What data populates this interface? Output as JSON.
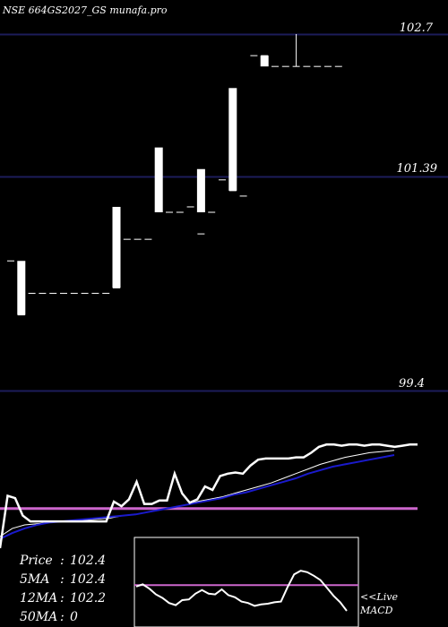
{
  "header": {
    "title": "NSE 664GS2027_GS munafa.pro"
  },
  "stats": {
    "price_label": "Price",
    "price_value": "102.4",
    "ma5_label": "5MA",
    "ma5_value": "102.4",
    "ma12_label": "12MA",
    "ma12_value": "102.2",
    "ma50_label": "50MA",
    "ma50_value": "0"
  },
  "macd_label": {
    "line1": "<<Live",
    "line2": "MACD"
  },
  "colors": {
    "background": "#000000",
    "grid": "#1c1c5a",
    "candle": "#ffffff",
    "ma_slow": "#1a1acc",
    "ma_fast": "#ffffff",
    "signal": "#cc66cc",
    "panel_border": "#ffffff"
  },
  "chart_data": [
    {
      "type": "candlestick",
      "title": "NSE 664GS2027_GS munafa.pro",
      "ylim": [
        99.4,
        102.7
      ],
      "y_ticks": [
        "102.7",
        "101.39",
        "99.4"
      ],
      "candles": [
        {
          "o": 100.6,
          "h": 100.6,
          "l": 100.6,
          "c": 100.6
        },
        {
          "o": 100.1,
          "h": 100.1,
          "l": 100.1,
          "c": 100.1
        },
        {
          "o": 100.3,
          "h": 100.3,
          "l": 100.3,
          "c": 100.3
        },
        {
          "o": 100.3,
          "h": 100.3,
          "l": 100.3,
          "c": 100.3
        },
        {
          "o": 100.3,
          "h": 100.3,
          "l": 100.3,
          "c": 100.3
        },
        {
          "o": 100.3,
          "h": 100.3,
          "l": 100.3,
          "c": 100.3
        },
        {
          "o": 100.3,
          "h": 100.3,
          "l": 100.3,
          "c": 100.3
        },
        {
          "o": 100.3,
          "h": 100.3,
          "l": 100.3,
          "c": 100.3
        },
        {
          "o": 100.3,
          "h": 100.3,
          "l": 100.3,
          "c": 100.3
        },
        {
          "o": 100.3,
          "h": 100.3,
          "l": 100.3,
          "c": 100.3
        },
        {
          "o": 100.35,
          "h": 100.35,
          "l": 100.35,
          "c": 100.35
        },
        {
          "o": 100.8,
          "h": 100.8,
          "l": 100.8,
          "c": 100.8
        },
        {
          "o": 100.8,
          "h": 100.8,
          "l": 100.8,
          "c": 100.8
        },
        {
          "o": 100.8,
          "h": 100.8,
          "l": 100.8,
          "c": 100.8
        },
        {
          "o": 101.25,
          "h": 101.25,
          "l": 101.25,
          "c": 101.25
        },
        {
          "o": 101.05,
          "h": 101.05,
          "l": 101.05,
          "c": 101.05
        },
        {
          "o": 101.05,
          "h": 101.05,
          "l": 101.05,
          "c": 101.05
        },
        {
          "o": 101.1,
          "h": 101.1,
          "l": 101.1,
          "c": 101.1
        },
        {
          "o": 100.85,
          "h": 100.85,
          "l": 100.85,
          "c": 100.85
        },
        {
          "o": 101.05,
          "h": 101.05,
          "l": 101.05,
          "c": 101.05
        },
        {
          "o": 101.35,
          "h": 101.35,
          "l": 101.35,
          "c": 101.35
        },
        {
          "o": 101.25,
          "h": 101.25,
          "l": 101.25,
          "c": 101.25
        },
        {
          "o": 101.2,
          "h": 101.2,
          "l": 101.2,
          "c": 101.2
        },
        {
          "o": 102.5,
          "h": 102.5,
          "l": 102.5,
          "c": 102.5
        },
        {
          "o": 102.5,
          "h": 102.5,
          "l": 102.5,
          "c": 102.5
        },
        {
          "o": 102.4,
          "h": 102.4,
          "l": 102.4,
          "c": 102.4
        },
        {
          "o": 102.4,
          "h": 102.4,
          "l": 102.4,
          "c": 102.4
        },
        {
          "o": 102.4,
          "h": 102.7,
          "l": 102.4,
          "c": 102.4
        },
        {
          "o": 102.4,
          "h": 102.4,
          "l": 102.4,
          "c": 102.4
        },
        {
          "o": 102.4,
          "h": 102.4,
          "l": 102.4,
          "c": 102.4
        },
        {
          "o": 102.4,
          "h": 102.4,
          "l": 102.4,
          "c": 102.4
        },
        {
          "o": 102.4,
          "h": 102.4,
          "l": 102.4,
          "c": 102.4
        }
      ],
      "bodies": [
        {
          "index": 1,
          "o": 100.6,
          "c": 100.1
        },
        {
          "index": 10,
          "o": 100.35,
          "c": 101.1
        },
        {
          "index": 14,
          "o": 101.05,
          "c": 101.65
        },
        {
          "index": 18,
          "o": 101.05,
          "c": 101.45
        },
        {
          "index": 21,
          "o": 101.25,
          "c": 102.2
        },
        {
          "index": 24,
          "o": 102.4,
          "c": 102.5
        }
      ]
    },
    {
      "type": "line",
      "panel": "moving-averages",
      "series": [
        {
          "role": "price",
          "values": [
            0.1,
            0.55,
            0.53,
            0.38,
            0.33,
            0.33,
            0.33,
            0.33,
            0.33,
            0.33,
            0.33,
            0.33,
            0.33,
            0.33,
            0.33,
            0.5,
            0.46,
            0.52,
            0.67,
            0.48,
            0.48,
            0.51,
            0.51,
            0.74,
            0.57,
            0.49,
            0.52,
            0.63,
            0.6,
            0.72,
            0.74,
            0.75,
            0.74,
            0.81,
            0.86,
            0.87,
            0.87,
            0.87,
            0.87,
            0.88,
            0.88,
            0.92,
            0.97,
            0.99,
            0.99,
            0.98,
            0.99,
            0.99,
            0.98,
            0.99,
            0.99,
            0.98,
            0.97,
            0.98,
            0.99,
            0.99
          ]
        },
        {
          "role": "fast-average",
          "values": [
            0.2,
            0.27,
            0.3,
            0.31,
            0.32,
            0.33,
            0.33,
            0.34,
            0.35,
            0.36,
            0.38,
            0.39,
            0.41,
            0.43,
            0.45,
            0.47,
            0.5,
            0.52,
            0.54,
            0.57,
            0.6,
            0.63,
            0.66,
            0.7,
            0.74,
            0.78,
            0.82,
            0.85,
            0.88,
            0.9,
            0.92,
            0.93,
            0.94
          ]
        },
        {
          "role": "slow-average",
          "values": [
            0.18,
            0.23,
            0.27,
            0.3,
            0.32,
            0.33,
            0.34,
            0.35,
            0.36,
            0.37,
            0.38,
            0.39,
            0.41,
            0.43,
            0.45,
            0.47,
            0.49,
            0.51,
            0.53,
            0.56,
            0.58,
            0.61,
            0.64,
            0.67,
            0.7,
            0.74,
            0.77,
            0.8,
            0.82,
            0.84,
            0.86,
            0.88,
            0.9
          ]
        }
      ],
      "signal_level": 0.44
    },
    {
      "type": "line",
      "panel": "macd",
      "series": [
        {
          "role": "macd",
          "values": [
            0.44,
            0.47,
            0.41,
            0.33,
            0.28,
            0.21,
            0.18,
            0.25,
            0.26,
            0.34,
            0.39,
            0.34,
            0.33,
            0.4,
            0.32,
            0.29,
            0.23,
            0.21,
            0.17,
            0.19,
            0.2,
            0.22,
            0.23,
            0.43,
            0.61,
            0.66,
            0.64,
            0.59,
            0.53,
            0.42,
            0.31,
            0.22,
            0.1
          ]
        }
      ],
      "signal_level": 0.46
    }
  ]
}
